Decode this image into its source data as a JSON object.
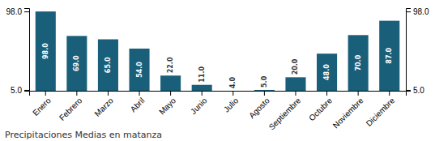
{
  "chart_data": {
    "type": "bar",
    "title": "Precipitaciones Medias en matanza",
    "categories": [
      "Enero",
      "Febrero",
      "Marzo",
      "Abril",
      "Mayo",
      "Junio",
      "Julio",
      "Agosto",
      "Septiembre",
      "Octubre",
      "Noviembre",
      "Diciembre"
    ],
    "values": [
      98.0,
      69.0,
      65.0,
      54.0,
      22.0,
      11.0,
      4.0,
      5.0,
      20.0,
      48.0,
      70.0,
      87.0
    ],
    "value_labels": [
      "98.0",
      "69.0",
      "65.0",
      "54.0",
      "22.0",
      "11.0",
      "4.0",
      "5.0",
      "20.0",
      "48.0",
      "70.0",
      "87.0"
    ],
    "data_labels": true,
    "color": "#1a5f7a",
    "ylim": [
      4,
      102
    ],
    "yticks": [
      {
        "value": 5,
        "label": "5.0"
      },
      {
        "value": 98,
        "label": "98.0"
      }
    ],
    "grid": false
  }
}
